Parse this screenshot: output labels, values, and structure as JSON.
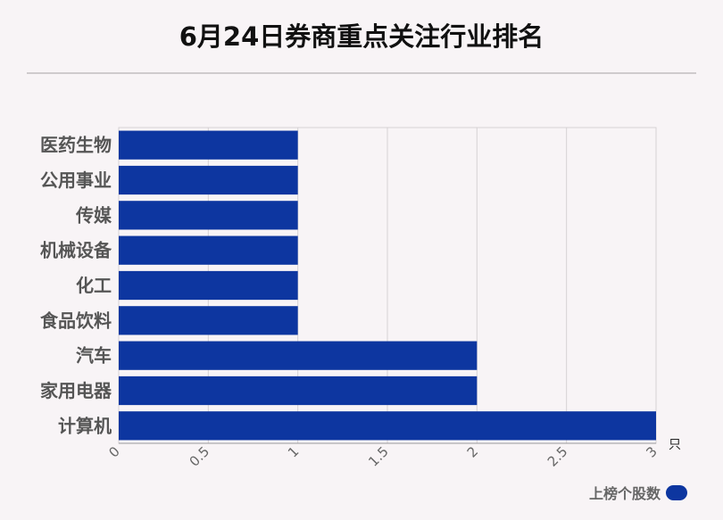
{
  "chart_data": {
    "type": "bar",
    "orientation": "horizontal",
    "title": "6月24日券商重点关注行业排名",
    "categories": [
      "医药生物",
      "公用事业",
      "传媒",
      "机械设备",
      "化工",
      "食品饮料",
      "汽车",
      "家用电器",
      "计算机"
    ],
    "series": [
      {
        "name": "上榜个股数",
        "values": [
          1,
          1,
          1,
          1,
          1,
          1,
          2,
          2,
          3
        ]
      }
    ],
    "xlim": [
      0,
      3
    ],
    "xticks": [
      "0",
      "0.5",
      "1",
      "1.5",
      "2",
      "2.5",
      "3"
    ],
    "unit": "只",
    "grid": true,
    "legend_position": "bottom-right",
    "color": "#0d36a0"
  }
}
